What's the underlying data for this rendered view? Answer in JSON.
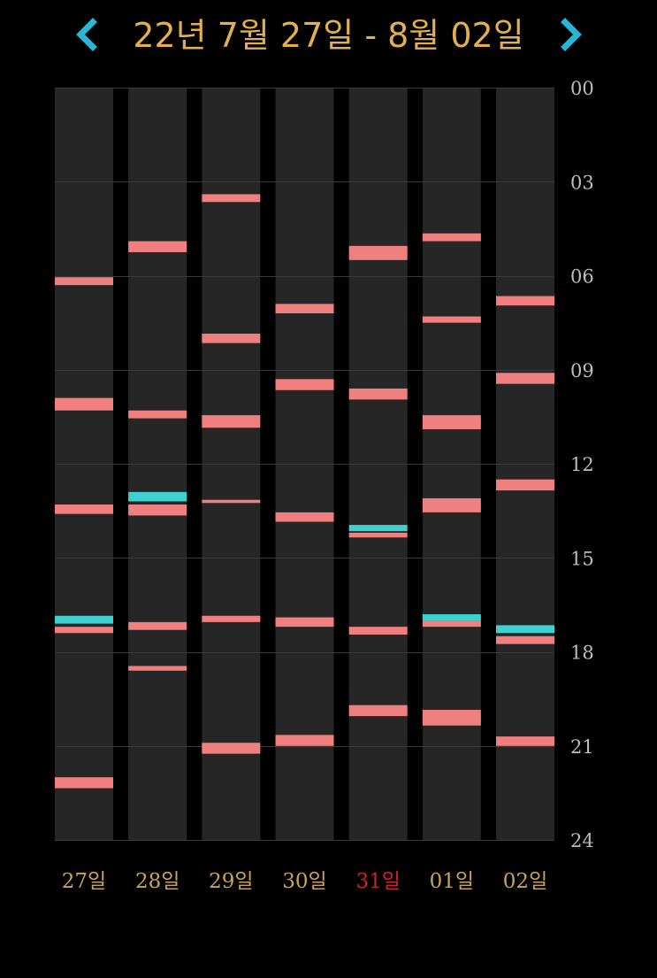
{
  "header": {
    "title": "22년 7월 27일 - 8월 02일",
    "prev_icon": "chevron-left-icon",
    "next_icon": "chevron-right-icon"
  },
  "colors": {
    "background": "#000000",
    "column": "#262626",
    "gridline": "#3a3a3a",
    "accent": "#29b6d6",
    "title": "#e3b04b",
    "day_label": "#c9a35a",
    "holiday_label": "#d0202a",
    "hour_label": "#bdbdbd",
    "bar_pink": "#f08080",
    "bar_cyan": "#3fd0d0"
  },
  "chart_data": {
    "type": "timeline",
    "y_range_hours": [
      0,
      24
    ],
    "y_ticks": [
      "00",
      "03",
      "06",
      "09",
      "12",
      "15",
      "18",
      "21",
      "24"
    ],
    "day_labels": [
      "27일",
      "28일",
      "29일",
      "30일",
      "31일",
      "01일",
      "02일"
    ],
    "holiday_index": 4,
    "series_colors": {
      "pink": "#f08080",
      "cyan": "#3fd0d0"
    },
    "days": [
      {
        "label": "27일",
        "events": [
          {
            "start": 6.05,
            "end": 6.3,
            "color": "pink"
          },
          {
            "start": 9.9,
            "end": 10.3,
            "color": "pink"
          },
          {
            "start": 13.3,
            "end": 13.6,
            "color": "pink"
          },
          {
            "start": 16.85,
            "end": 17.1,
            "color": "cyan"
          },
          {
            "start": 17.2,
            "end": 17.4,
            "color": "pink"
          },
          {
            "start": 22.0,
            "end": 22.35,
            "color": "pink"
          }
        ]
      },
      {
        "label": "28일",
        "events": [
          {
            "start": 4.9,
            "end": 5.25,
            "color": "pink"
          },
          {
            "start": 10.3,
            "end": 10.55,
            "color": "pink"
          },
          {
            "start": 12.9,
            "end": 13.2,
            "color": "cyan"
          },
          {
            "start": 13.3,
            "end": 13.65,
            "color": "pink"
          },
          {
            "start": 17.05,
            "end": 17.3,
            "color": "pink"
          },
          {
            "start": 18.45,
            "end": 18.6,
            "color": "pink"
          }
        ]
      },
      {
        "label": "29일",
        "events": [
          {
            "start": 3.4,
            "end": 3.65,
            "color": "pink"
          },
          {
            "start": 7.85,
            "end": 8.15,
            "color": "pink"
          },
          {
            "start": 10.45,
            "end": 10.85,
            "color": "pink"
          },
          {
            "start": 13.15,
            "end": 13.25,
            "color": "pink"
          },
          {
            "start": 16.85,
            "end": 17.05,
            "color": "pink"
          },
          {
            "start": 20.9,
            "end": 21.25,
            "color": "pink"
          }
        ]
      },
      {
        "label": "30일",
        "events": [
          {
            "start": 6.9,
            "end": 7.2,
            "color": "pink"
          },
          {
            "start": 9.3,
            "end": 9.65,
            "color": "pink"
          },
          {
            "start": 13.55,
            "end": 13.85,
            "color": "pink"
          },
          {
            "start": 16.9,
            "end": 17.2,
            "color": "pink"
          },
          {
            "start": 20.65,
            "end": 21.0,
            "color": "pink"
          }
        ]
      },
      {
        "label": "31일",
        "events": [
          {
            "start": 5.05,
            "end": 5.5,
            "color": "pink"
          },
          {
            "start": 9.6,
            "end": 9.95,
            "color": "pink"
          },
          {
            "start": 13.95,
            "end": 14.15,
            "color": "cyan"
          },
          {
            "start": 14.2,
            "end": 14.35,
            "color": "pink"
          },
          {
            "start": 17.2,
            "end": 17.45,
            "color": "pink"
          },
          {
            "start": 19.7,
            "end": 20.05,
            "color": "pink"
          }
        ]
      },
      {
        "label": "01일",
        "events": [
          {
            "start": 4.65,
            "end": 4.9,
            "color": "pink"
          },
          {
            "start": 7.3,
            "end": 7.5,
            "color": "pink"
          },
          {
            "start": 10.45,
            "end": 10.9,
            "color": "pink"
          },
          {
            "start": 13.1,
            "end": 13.55,
            "color": "pink"
          },
          {
            "start": 16.8,
            "end": 17.0,
            "color": "cyan"
          },
          {
            "start": 17.0,
            "end": 17.2,
            "color": "pink"
          },
          {
            "start": 19.85,
            "end": 20.35,
            "color": "pink"
          }
        ]
      },
      {
        "label": "02일",
        "events": [
          {
            "start": 6.65,
            "end": 6.95,
            "color": "pink"
          },
          {
            "start": 9.1,
            "end": 9.45,
            "color": "pink"
          },
          {
            "start": 12.5,
            "end": 12.85,
            "color": "pink"
          },
          {
            "start": 17.15,
            "end": 17.4,
            "color": "cyan"
          },
          {
            "start": 17.5,
            "end": 17.75,
            "color": "pink"
          },
          {
            "start": 20.7,
            "end": 21.0,
            "color": "pink"
          }
        ]
      }
    ]
  }
}
